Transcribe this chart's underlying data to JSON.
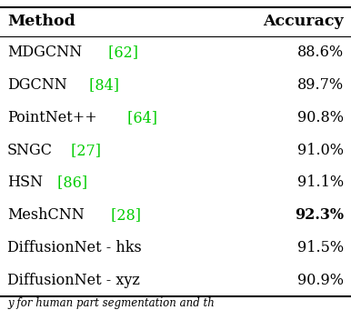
{
  "title_col1": "Method",
  "title_col2": "Accuracy",
  "rows": [
    {
      "method": "MDGCNN",
      "cite": " [62]",
      "accuracy": "88.6%",
      "bold_acc": false
    },
    {
      "method": "DGCNN",
      "cite": " [84]",
      "accuracy": "89.7%",
      "bold_acc": false
    },
    {
      "method": "PointNet++",
      "cite": " [64]",
      "accuracy": "90.8%",
      "bold_acc": false
    },
    {
      "method": "SNGC",
      "cite": " [27]",
      "accuracy": "91.0%",
      "bold_acc": false
    },
    {
      "method": "HSN",
      "cite": " [86]",
      "accuracy": "91.1%",
      "bold_acc": false
    },
    {
      "method": "MeshCNN",
      "cite": " [28]",
      "accuracy": "92.3%",
      "bold_acc": true
    },
    {
      "method": "DiffusionNet - hks",
      "cite": "",
      "accuracy": "91.5%",
      "bold_acc": false
    },
    {
      "method": "DiffusionNet - xyz",
      "cite": "",
      "accuracy": "90.9%",
      "bold_acc": false
    }
  ],
  "footer_text": "y for human part segmentation and th",
  "bg_color": "#ffffff",
  "text_color": "#000000",
  "cite_color": "#00cc00",
  "fontsize": 11.5,
  "header_fontsize": 12.5
}
